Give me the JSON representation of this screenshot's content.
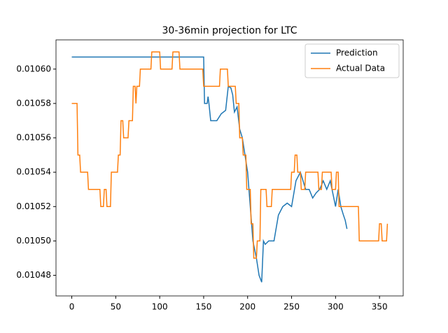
{
  "chart_data": {
    "type": "line",
    "title": "30-36min projection for LTC",
    "xlim": [
      -17.95,
      376.95
    ],
    "xticks": [
      0,
      50,
      100,
      150,
      200,
      250,
      300,
      350
    ],
    "ylim": [
      0.010468,
      0.010617
    ],
    "yticks": [
      {
        "value": 0.01048,
        "label": "0.01048"
      },
      {
        "value": 0.0105,
        "label": "0.01050"
      },
      {
        "value": 0.01052,
        "label": "0.01052"
      },
      {
        "value": 0.01054,
        "label": "0.01054"
      },
      {
        "value": 0.01056,
        "label": "0.01056"
      },
      {
        "value": 0.01058,
        "label": "0.01058"
      },
      {
        "value": 0.0106,
        "label": "0.01060"
      }
    ],
    "legend": "upper right",
    "series": [
      {
        "name": "Prediction",
        "color": "#1f77b4",
        "x": [
          0,
          150,
          151,
          154,
          155,
          156,
          158,
          165,
          170,
          175,
          178,
          181,
          183,
          185,
          188,
          191,
          194,
          197,
          200,
          203,
          206,
          210,
          213,
          216,
          218,
          220,
          224,
          230,
          235,
          240,
          245,
          250,
          255,
          260,
          263,
          266,
          270,
          274,
          278,
          282,
          286,
          290,
          294,
          298,
          300,
          303,
          306,
          309,
          311,
          313
        ],
        "values": [
          0.010607,
          0.010607,
          0.01058,
          0.01058,
          0.010584,
          0.01058,
          0.01057,
          0.01057,
          0.010574,
          0.010576,
          0.01059,
          0.010589,
          0.010585,
          0.010575,
          0.010578,
          0.010565,
          0.01056,
          0.01055,
          0.01054,
          0.01052,
          0.0105,
          0.01049,
          0.01048,
          0.010476,
          0.0105,
          0.010498,
          0.0105,
          0.0105,
          0.010515,
          0.01052,
          0.010522,
          0.01052,
          0.010535,
          0.01054,
          0.010535,
          0.01053,
          0.01053,
          0.010525,
          0.010528,
          0.01053,
          0.010535,
          0.01053,
          0.010535,
          0.010525,
          0.01052,
          0.01053,
          0.01052,
          0.010515,
          0.010512,
          0.010507
        ]
      },
      {
        "name": "Actual Data",
        "color": "#ff7f0e",
        "x": [
          0,
          6,
          7,
          9,
          10,
          18,
          19,
          32,
          33,
          36,
          37,
          39,
          40,
          44,
          45,
          52,
          53,
          55,
          56,
          58,
          59,
          64,
          65,
          69,
          70,
          72,
          73,
          74,
          77,
          78,
          90,
          91,
          100,
          101,
          114,
          115,
          122,
          123,
          149,
          150,
          168,
          169,
          177,
          178,
          186,
          187,
          190,
          191,
          194,
          195,
          198,
          199,
          203,
          204,
          206,
          207,
          210,
          211,
          214,
          215,
          221,
          222,
          227,
          228,
          249,
          250,
          253,
          254,
          256,
          257,
          260,
          261,
          265,
          266,
          280,
          281,
          284,
          285,
          295,
          296,
          300,
          301,
          303,
          304,
          326,
          327,
          349,
          350,
          352,
          353,
          358,
          359
        ],
        "values": [
          0.01058,
          0.01058,
          0.01055,
          0.01055,
          0.01054,
          0.01054,
          0.01053,
          0.01053,
          0.01052,
          0.01052,
          0.01053,
          0.01053,
          0.01052,
          0.01052,
          0.01054,
          0.01054,
          0.01055,
          0.01055,
          0.01057,
          0.01057,
          0.01056,
          0.01056,
          0.01057,
          0.01057,
          0.01059,
          0.01059,
          0.01058,
          0.01059,
          0.01059,
          0.0106,
          0.0106,
          0.01061,
          0.01061,
          0.0106,
          0.0106,
          0.01061,
          0.01061,
          0.0106,
          0.0106,
          0.01059,
          0.01059,
          0.0106,
          0.0106,
          0.01059,
          0.01059,
          0.01058,
          0.01058,
          0.01056,
          0.01056,
          0.01055,
          0.01055,
          0.01053,
          0.01053,
          0.01051,
          0.01051,
          0.01049,
          0.01049,
          0.0105,
          0.0105,
          0.01053,
          0.01053,
          0.01052,
          0.01052,
          0.01053,
          0.01053,
          0.01054,
          0.01054,
          0.01055,
          0.01055,
          0.01054,
          0.01054,
          0.01053,
          0.01053,
          0.01054,
          0.01054,
          0.01053,
          0.01053,
          0.01054,
          0.01054,
          0.01053,
          0.01053,
          0.01054,
          0.01054,
          0.01052,
          0.01052,
          0.0105,
          0.0105,
          0.01051,
          0.01051,
          0.0105,
          0.0105,
          0.01051
        ]
      }
    ]
  }
}
